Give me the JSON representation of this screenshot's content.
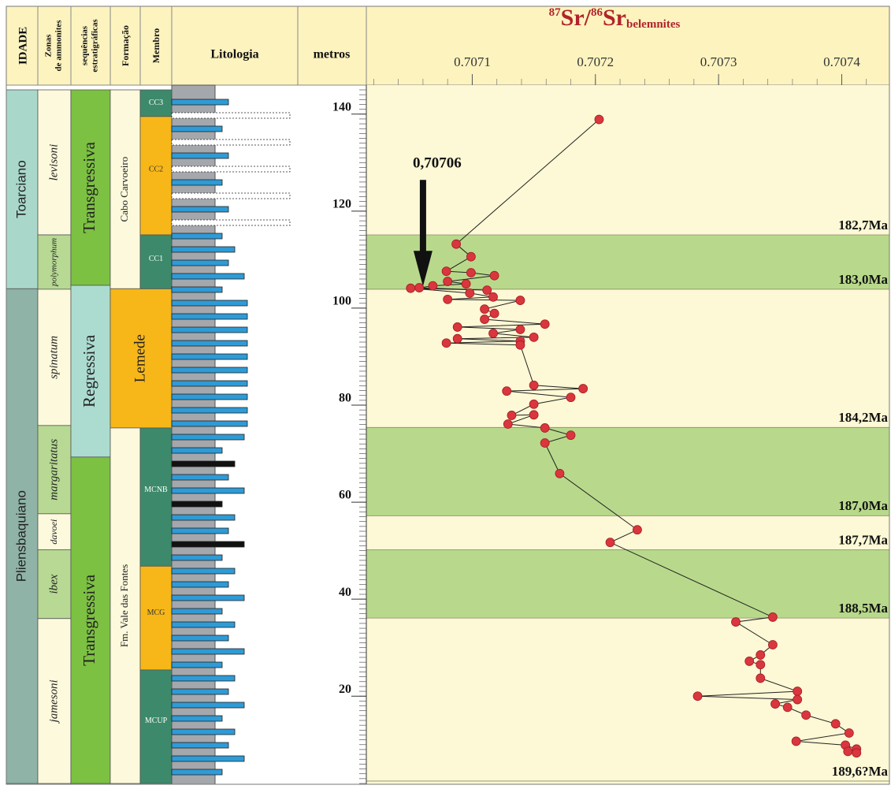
{
  "header": {
    "idade": "IDADE",
    "zonas": [
      "Zonas",
      "de ammonites"
    ],
    "sequencias": [
      "sequências",
      "estratigráficas"
    ],
    "formacao": "Formação",
    "membro": "Membro",
    "litologia": "Litologia",
    "metros": "metros"
  },
  "columns": {
    "idade": [
      {
        "label": "Toarciano",
        "top": 145,
        "bottom": 104,
        "color": "#a9d8cb"
      },
      {
        "label": "Pliensbaquiano",
        "top": 104,
        "bottom": 2,
        "color": "#8fb3a6"
      }
    ],
    "zonas": [
      {
        "label": "levisoni",
        "top": 145,
        "bottom": 115.1,
        "color": "#fdf9dc"
      },
      {
        "label": "polymorphum",
        "top": 115.1,
        "bottom": 103.9,
        "color": "#b7d993"
      },
      {
        "label": "spinatum",
        "top": 103.9,
        "bottom": 75.8,
        "color": "#fdf9dc"
      },
      {
        "label": "margaritatus",
        "top": 75.8,
        "bottom": 57.6,
        "color": "#b7d993"
      },
      {
        "label": "davoei",
        "top": 57.6,
        "bottom": 50.2,
        "color": "#fdf9dc"
      },
      {
        "label": "ibex",
        "top": 50.2,
        "bottom": 36,
        "color": "#b7d993"
      },
      {
        "label": "jamesoni",
        "top": 36,
        "bottom": 2,
        "color": "#fdf9dc"
      }
    ],
    "sequencias": [
      {
        "label": "Transgressiva",
        "top": 145,
        "bottom": 104.7,
        "color": "#7cc142"
      },
      {
        "label": "Regressiva",
        "top": 104.7,
        "bottom": 69.3,
        "color": "#acdcd0"
      },
      {
        "label": "Transgressiva",
        "top": 69.3,
        "bottom": 2,
        "color": "#7cc142"
      }
    ],
    "formacao": [
      {
        "label": "Cabo Carvoeiro",
        "top": 145,
        "bottom": 104,
        "color": "#fdf9dc"
      },
      {
        "label": "Lemede",
        "top": 104,
        "bottom": 75.3,
        "color": "#f7b718"
      },
      {
        "label": "Fm. Vale das Fontes",
        "top": 75.3,
        "bottom": 2,
        "color": "#fdf9dc"
      }
    ],
    "membro": [
      {
        "label": "CC3",
        "top": 145,
        "bottom": 139.5,
        "color": "#3c8a6b"
      },
      {
        "label": "CC2",
        "top": 139.5,
        "bottom": 115.1,
        "color": "#f7b718"
      },
      {
        "label": "CC1",
        "top": 115.1,
        "bottom": 104,
        "color": "#3c8a6b"
      },
      {
        "label": "MCNB",
        "top": 75.3,
        "bottom": 46.8,
        "color": "#3c8a6b"
      },
      {
        "label": "MCG",
        "top": 46.8,
        "bottom": 25.4,
        "color": "#f7b718"
      },
      {
        "label": "MCUP",
        "top": 25.4,
        "bottom": 2,
        "color": "#3c8a6b"
      }
    ]
  },
  "chart_data": {
    "type": "scatter",
    "title": [
      "87",
      "Sr/",
      "86",
      "Sr",
      "belemnites"
    ],
    "xlim": [
      0.707014,
      0.70744
    ],
    "xticks": [
      0.7071,
      0.7072,
      0.7073,
      0.7074
    ],
    "x_minor_step": 2e-05,
    "ylim": [
      2,
      145
    ],
    "yticks": [
      20,
      40,
      60,
      80,
      100,
      120,
      140
    ],
    "y_minor_step": 1,
    "series": [
      {
        "color": "#d9363e",
        "x": [
          0.707203,
          0.707087,
          0.707099,
          0.707079,
          0.707099,
          0.707118,
          0.70708,
          0.707095,
          0.707068,
          0.707057,
          0.707112,
          0.70705,
          0.707098,
          0.707117,
          0.70708,
          0.707139,
          0.70711,
          0.707118,
          0.70711,
          0.707159,
          0.707088,
          0.707139,
          0.707117,
          0.70715,
          0.707088,
          0.707139,
          0.707079,
          0.707139,
          0.70715,
          0.70719,
          0.707128,
          0.70718,
          0.70715,
          0.707132,
          0.70715,
          0.707129,
          0.707159,
          0.70718,
          0.707159,
          0.707171,
          0.707234,
          0.707212,
          0.707344,
          0.707314,
          0.707344,
          0.707334,
          0.707325,
          0.707334,
          0.707334,
          0.707364,
          0.707283,
          0.707364,
          0.707346,
          0.707356,
          0.707371,
          0.707395,
          0.707406,
          0.707363,
          0.707403,
          0.707412,
          0.707405,
          0.707412
        ],
        "y": [
          138.9,
          113.2,
          110.6,
          107.6,
          107.3,
          106.7,
          105.5,
          105.0,
          104.6,
          104.2,
          103.7,
          104.1,
          103.1,
          102.3,
          101.8,
          101.6,
          99.8,
          98.9,
          97.7,
          96.7,
          96.1,
          95.6,
          94.8,
          94.0,
          93.7,
          93.2,
          92.8,
          92.4,
          84.1,
          83.4,
          82.9,
          81.6,
          80.2,
          77.9,
          78.0,
          76.1,
          75.3,
          73.8,
          72.2,
          65.9,
          54.3,
          51.7,
          36.3,
          35.3,
          30.6,
          28.5,
          27.2,
          26.5,
          23.7,
          21.0,
          20.0,
          19.3,
          18.4,
          17.7,
          16.1,
          14.3,
          12.4,
          10.7,
          9.9,
          9.1,
          8.6,
          8.3
        ]
      }
    ],
    "bands": [
      {
        "from": 103.9,
        "to": 115.1,
        "color": "#b8d98b"
      },
      {
        "from": 57.2,
        "to": 75.4,
        "color": "#b8d98b"
      },
      {
        "from": 36.1,
        "to": 50.2,
        "color": "#b8d98b"
      }
    ],
    "age_markers": [
      {
        "label": "182,7Ma",
        "y": 115.1
      },
      {
        "label": "183,0Ma",
        "y": 103.9
      },
      {
        "label": "184,2Ma",
        "y": 75.4
      },
      {
        "label": "187,0Ma",
        "y": 57.2
      },
      {
        "label": "187,7Ma",
        "y": 50.2
      },
      {
        "label": "188,5Ma",
        "y": 36.1
      },
      {
        "label": "189,6?Ma",
        "y": 2.5
      }
    ],
    "annotation": {
      "text": "0,70706",
      "x": 0.70706,
      "y": 104.5
    }
  }
}
